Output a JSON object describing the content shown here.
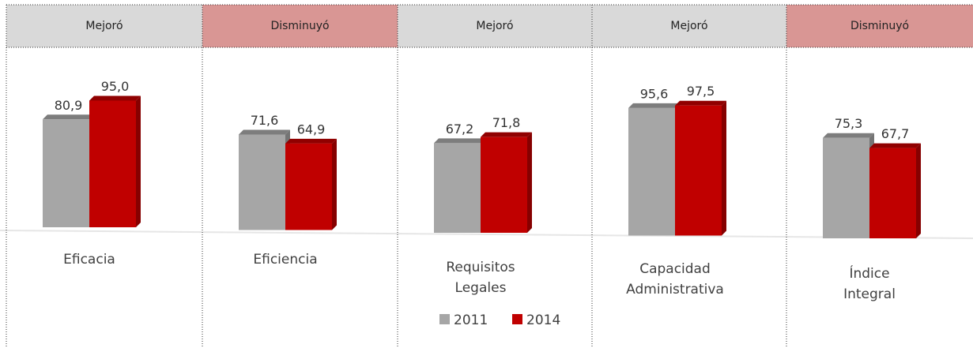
{
  "chart_data": {
    "type": "bar",
    "headers": [
      "Mejoró",
      "Disminuyó",
      "Mejoró",
      "Mejoró",
      "Disminuyó"
    ],
    "header_colors": [
      "#d9d9d9",
      "#d99694",
      "#d9d9d9",
      "#d9d9d9",
      "#d99694"
    ],
    "categories": [
      "Eficacia",
      "Eficiencia",
      "Requisitos\nLegales",
      "Capacidad\nAdministrativa",
      "Índice\nIntegral"
    ],
    "series": [
      {
        "name": "2011",
        "color": "#a6a6a6",
        "values": [
          80.9,
          71.6,
          67.2,
          95.6,
          75.3
        ],
        "value_labels": [
          "80,9",
          "71,6",
          "67,2",
          "95,6",
          "75,3"
        ]
      },
      {
        "name": "2014",
        "color": "#c00000",
        "values": [
          95.0,
          64.9,
          71.8,
          97.5,
          67.7
        ],
        "value_labels": [
          "95,0",
          "64,9",
          "71,8",
          "97,5",
          "67,7"
        ]
      }
    ]
  }
}
